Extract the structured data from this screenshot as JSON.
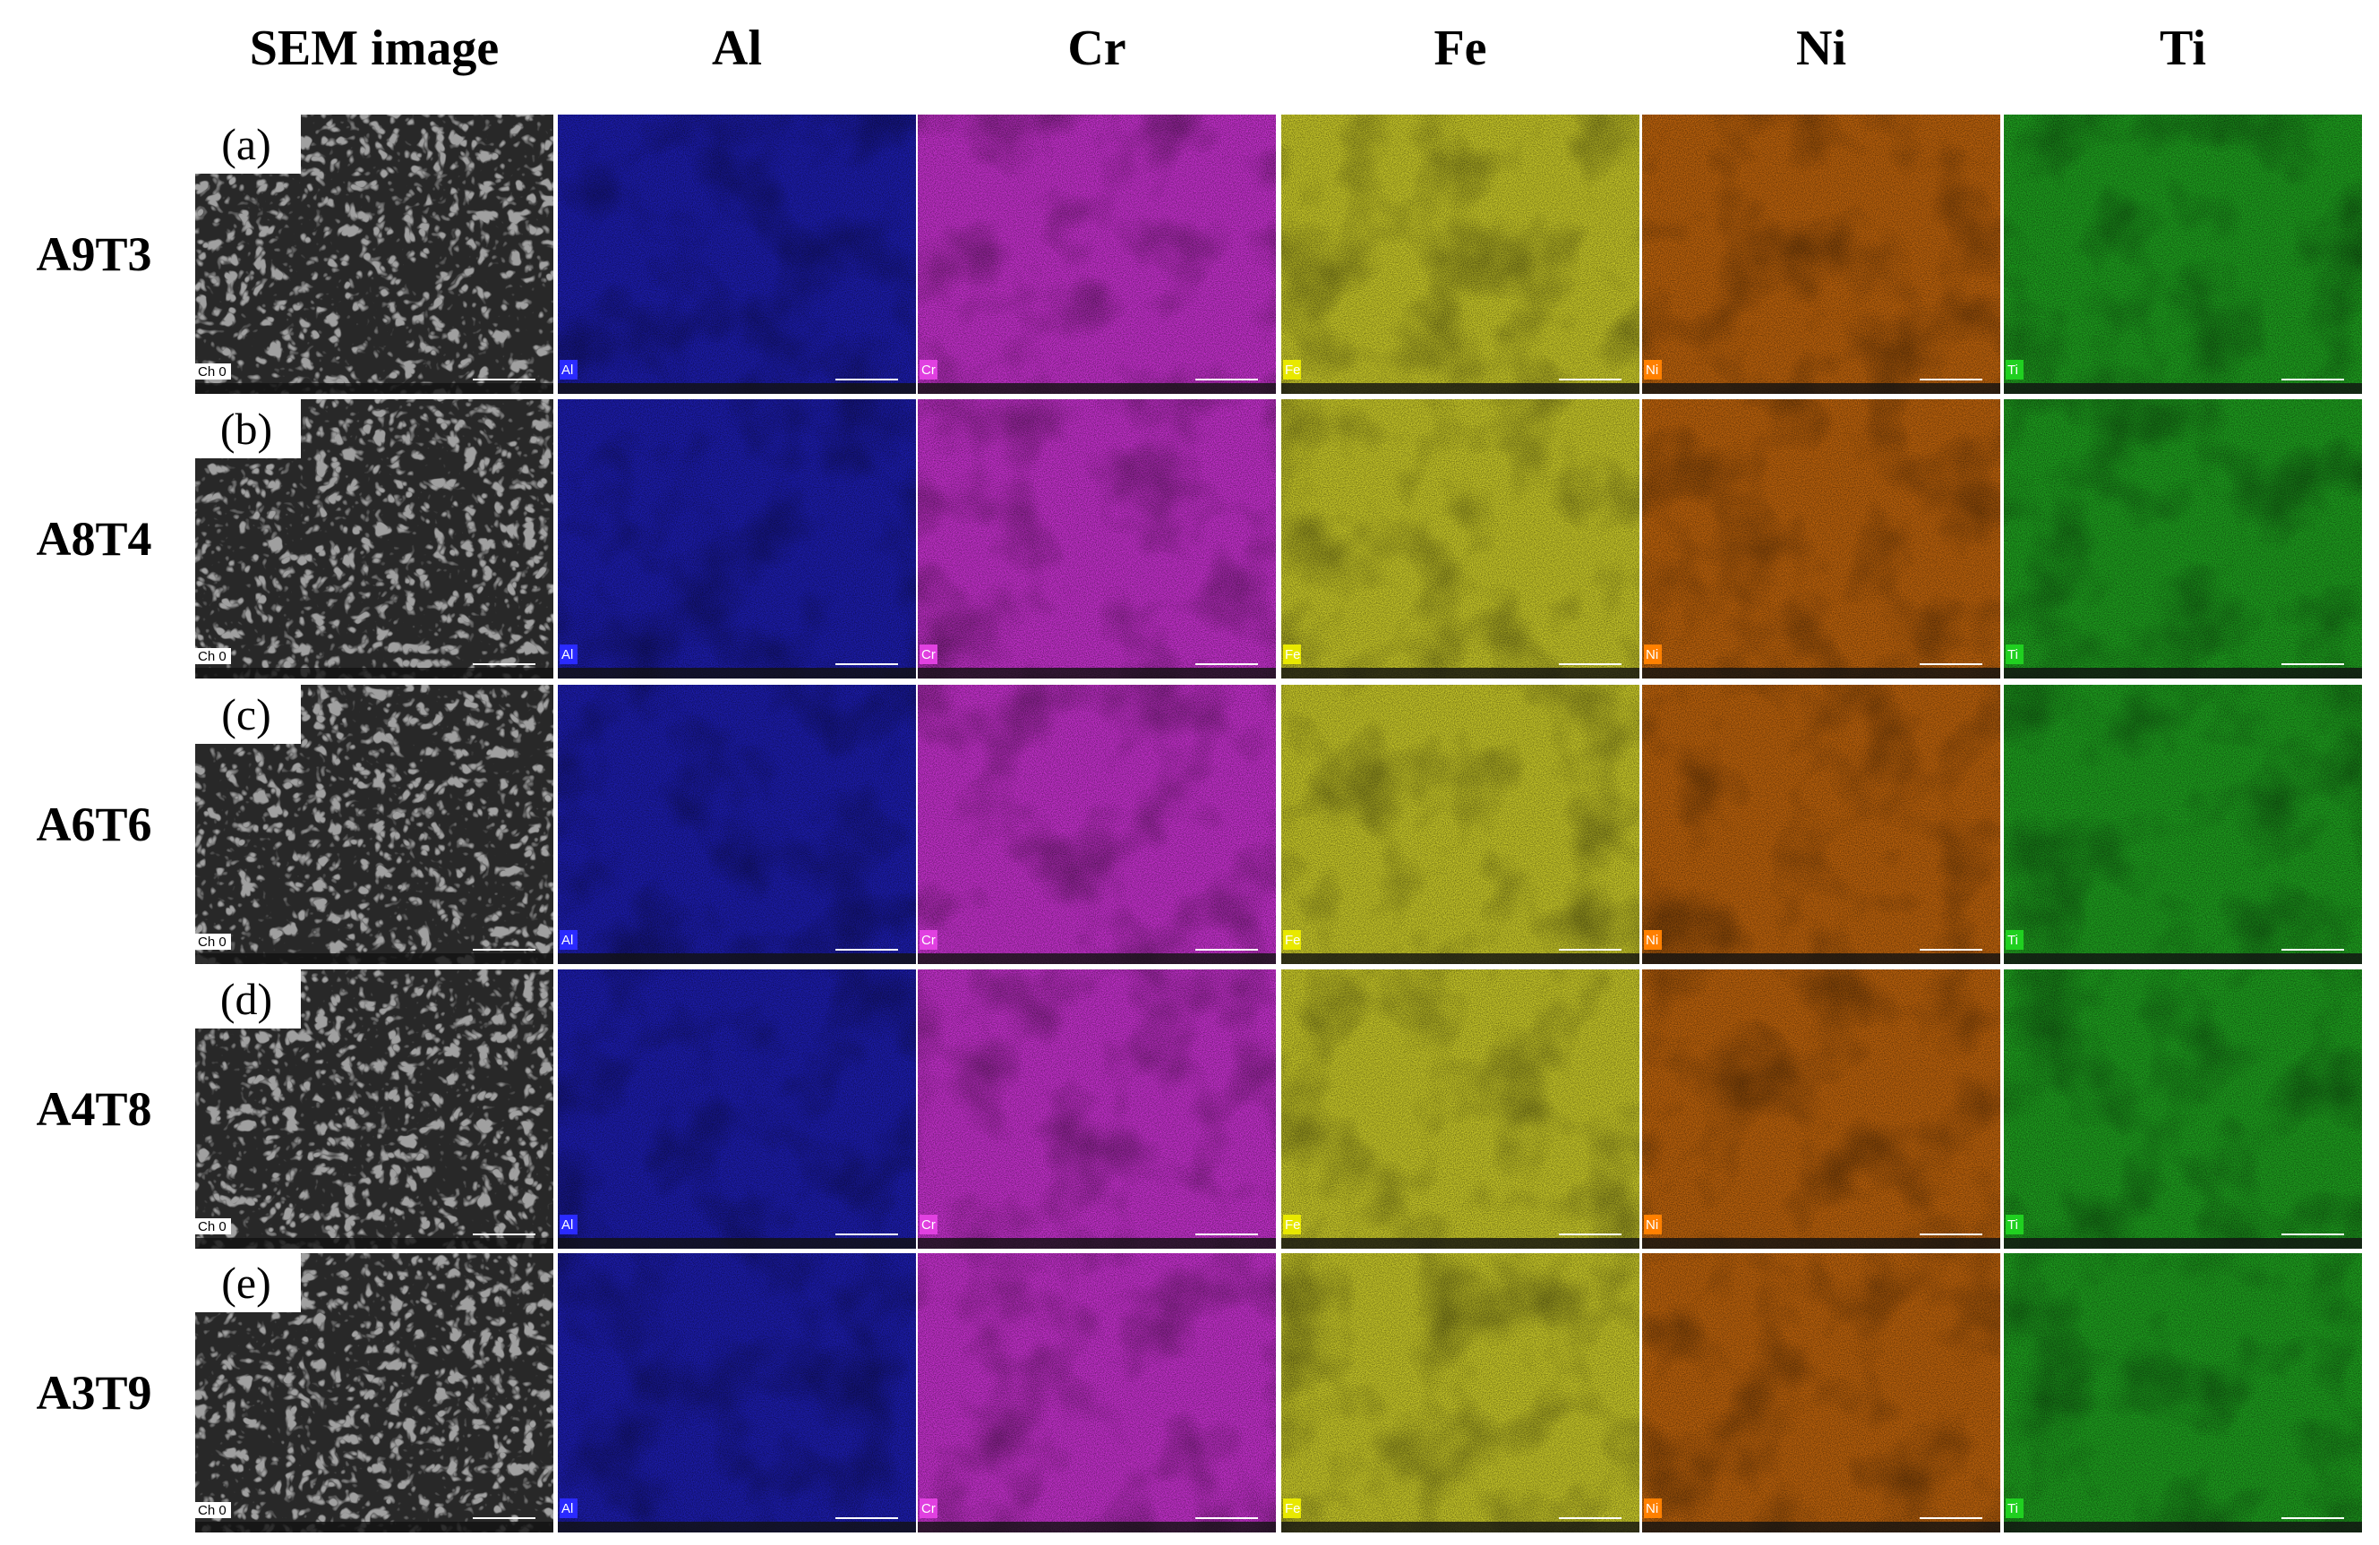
{
  "header": {
    "columns": [
      "SEM image",
      "Al",
      "Cr",
      "Fe",
      "Ni",
      "Ti"
    ]
  },
  "rows": [
    {
      "label": "A9T3",
      "panel": "(a)",
      "badge": "Ch 0"
    },
    {
      "label": "A8T4",
      "panel": "(b)",
      "badge": "Ch 0"
    },
    {
      "label": "A6T6",
      "panel": "(c)",
      "badge": "Ch 0"
    },
    {
      "label": "A4T8",
      "panel": "(d)",
      "badge": "Ch 0"
    },
    {
      "label": "A3T9",
      "panel": "(e)",
      "badge": "Ch 0"
    }
  ]
}
